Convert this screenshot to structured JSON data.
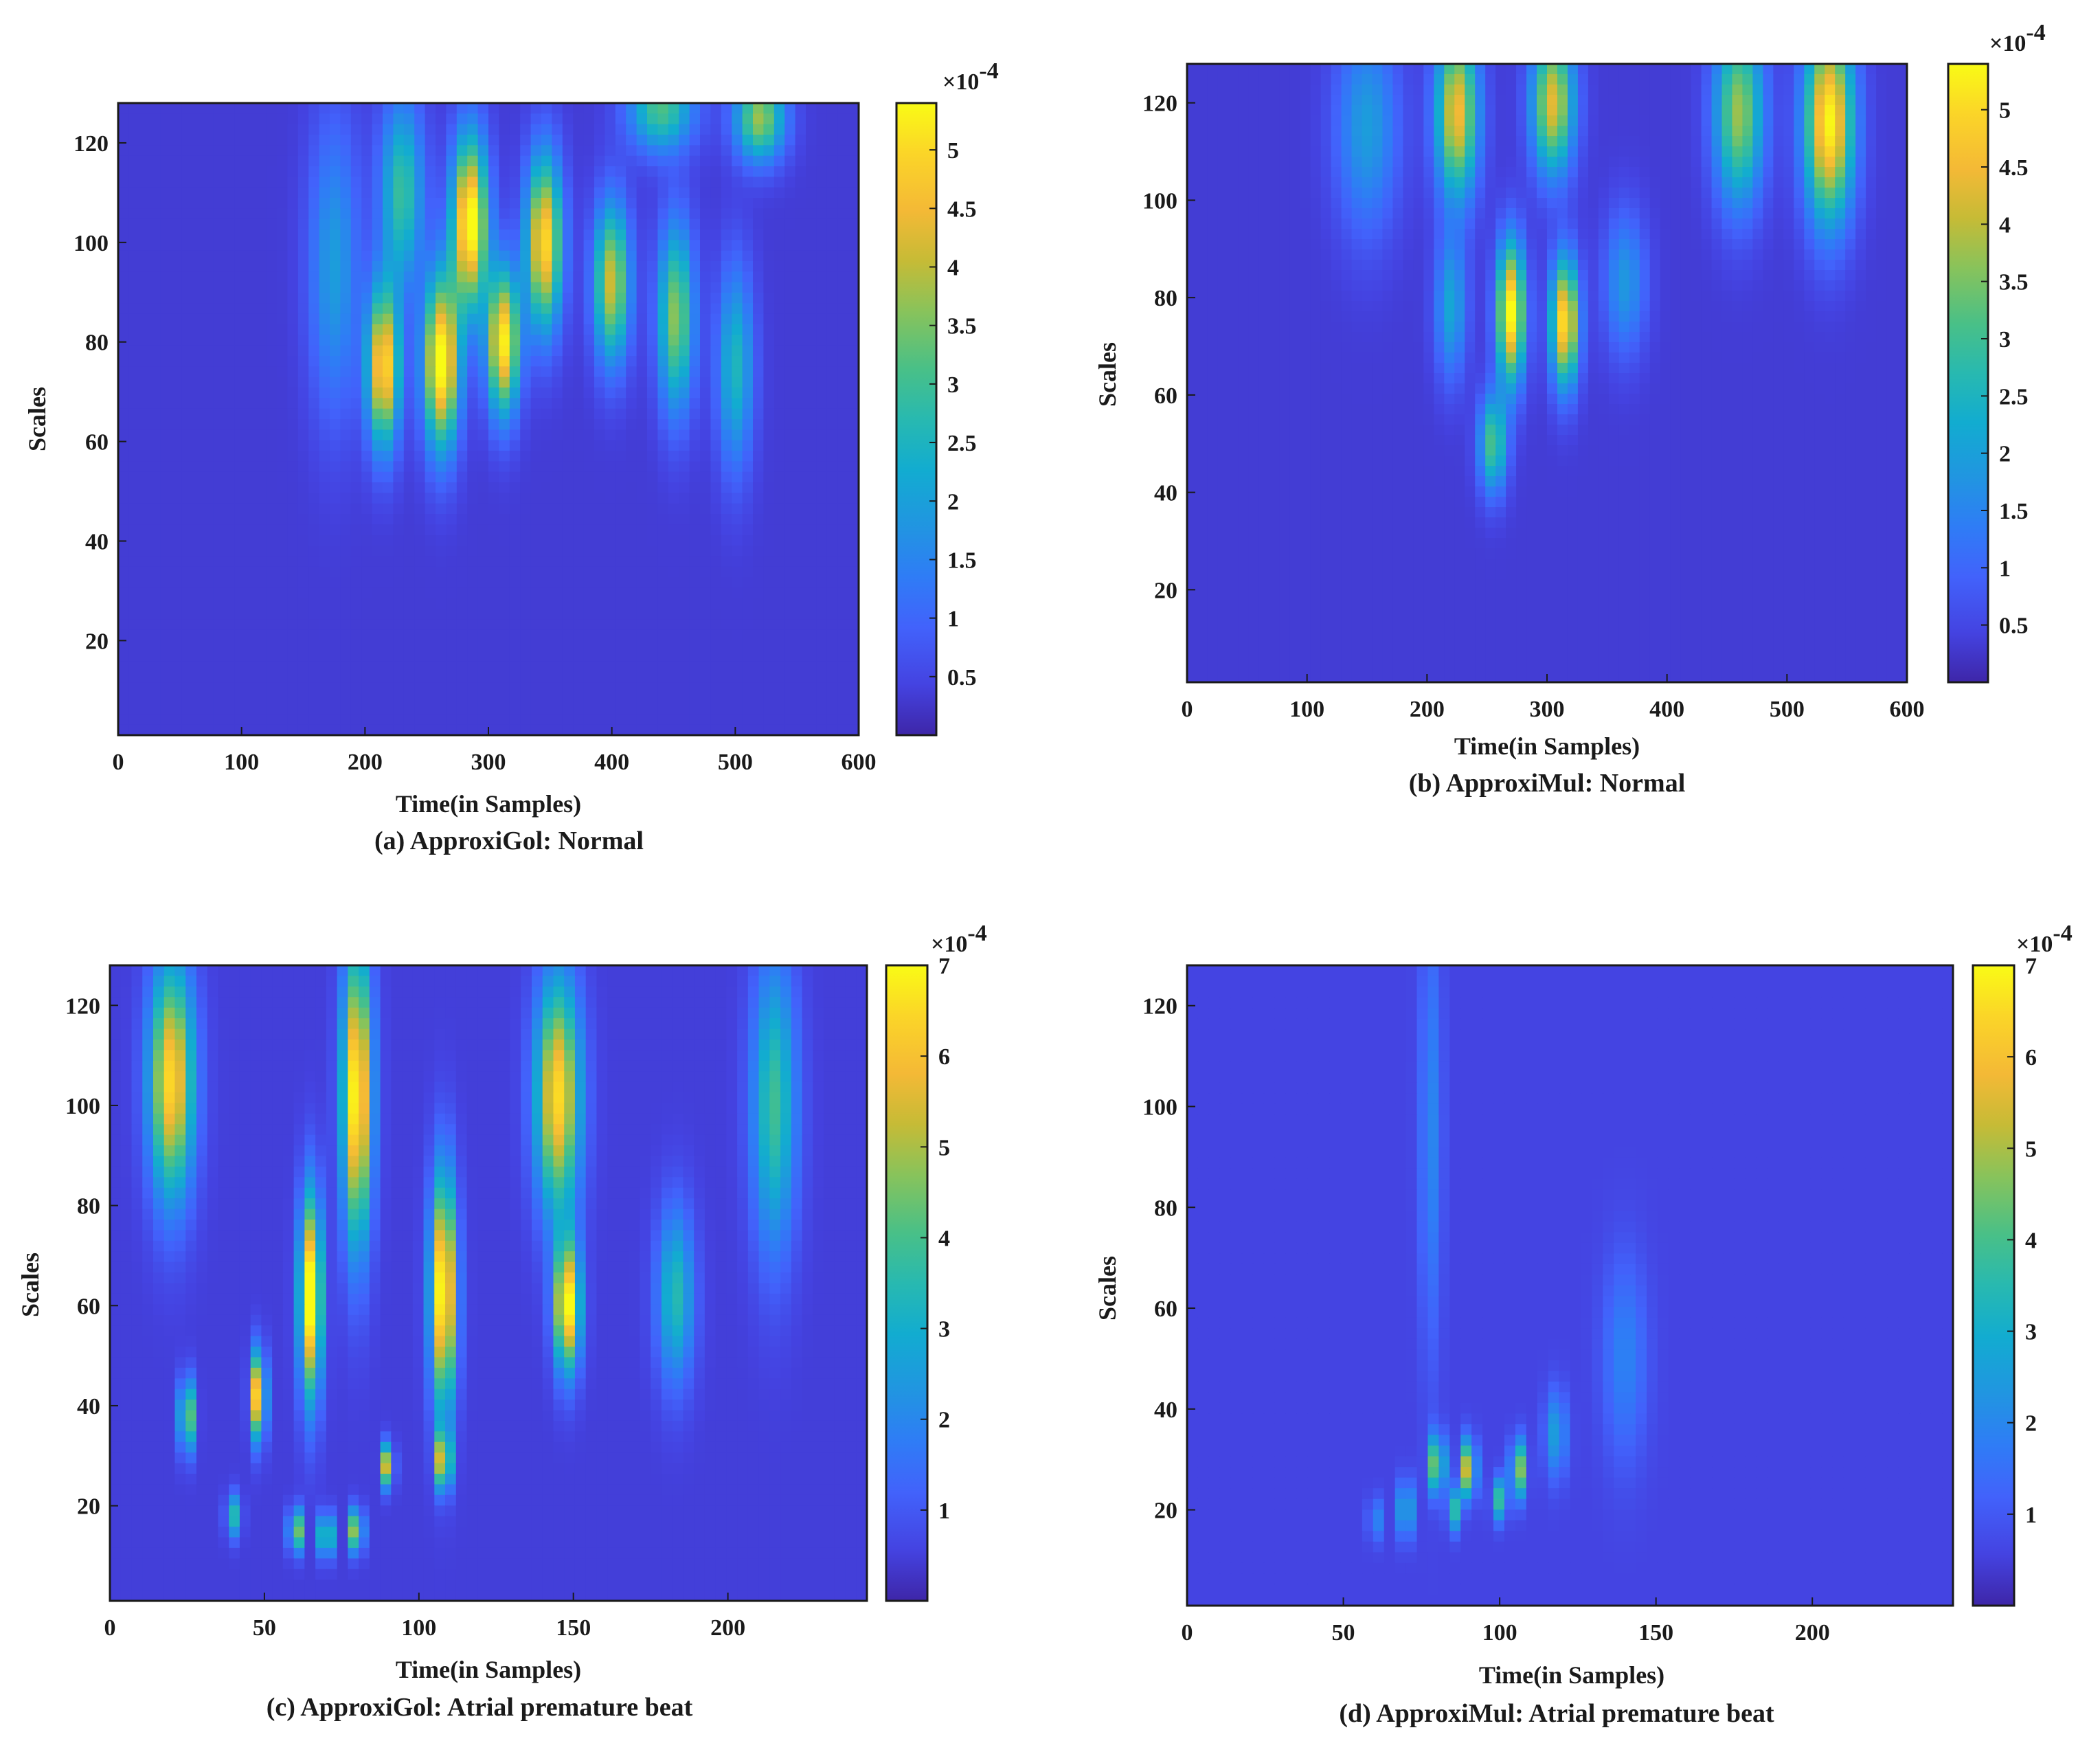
{
  "figure": {
    "description_free": true,
    "colormap": [
      "#3e26a8",
      "#4443e1",
      "#4262fb",
      "#2f7cf6",
      "#2195e1",
      "#12acd0",
      "#28b9b0",
      "#49c087",
      "#88c35b",
      "#c6bb36",
      "#f4b936",
      "#fbd528",
      "#f9fb15"
    ],
    "background": "#ffffff",
    "axis_color": "#1a1a1a"
  },
  "chart_data": [
    {
      "id": "a",
      "type": "heatmap",
      "title": "",
      "caption": "(a) ApproxiGol: Normal",
      "xlabel": "Time(in Samples)",
      "ylabel": "Scales",
      "xlim": [
        0,
        600
      ],
      "ylim": [
        1,
        128
      ],
      "xticks": [
        0,
        100,
        200,
        300,
        400,
        500,
        600
      ],
      "yticks": [
        20,
        40,
        60,
        80,
        100,
        120
      ],
      "colorbar": {
        "min": 0.0,
        "max": 5.4,
        "ticks": [
          0.5,
          1,
          1.5,
          2,
          2.5,
          3,
          3.5,
          4,
          4.5,
          5
        ],
        "tick_labels": [
          "0.5",
          "1",
          "1.5",
          "2",
          "2.5",
          "3",
          "3.5",
          "4",
          "4.5",
          "5"
        ],
        "multiplier": "×10",
        "exponent": "-4"
      },
      "background_value": 0.35,
      "blobs": [
        {
          "x": 215,
          "y": 75,
          "value": 4.8,
          "sx": 9,
          "sy": 11
        },
        {
          "x": 262,
          "y": 76,
          "value": 5.2,
          "sx": 10,
          "sy": 12
        },
        {
          "x": 285,
          "y": 104,
          "value": 5.3,
          "sx": 10,
          "sy": 12
        },
        {
          "x": 312,
          "y": 80,
          "value": 4.9,
          "sx": 9,
          "sy": 10
        },
        {
          "x": 345,
          "y": 100,
          "value": 4.7,
          "sx": 10,
          "sy": 12
        },
        {
          "x": 400,
          "y": 92,
          "value": 3.8,
          "sx": 10,
          "sy": 11
        },
        {
          "x": 452,
          "y": 85,
          "value": 3.3,
          "sx": 10,
          "sy": 13
        },
        {
          "x": 500,
          "y": 75,
          "value": 2.2,
          "sx": 10,
          "sy": 14
        },
        {
          "x": 230,
          "y": 110,
          "value": 2.6,
          "sx": 12,
          "sy": 13
        },
        {
          "x": 440,
          "y": 127,
          "value": 2.8,
          "sx": 18,
          "sy": 6
        },
        {
          "x": 520,
          "y": 125,
          "value": 3.4,
          "sx": 14,
          "sy": 6
        },
        {
          "x": 175,
          "y": 95,
          "value": 1.6,
          "sx": 14,
          "sy": 20
        }
      ]
    },
    {
      "id": "b",
      "type": "heatmap",
      "title": "",
      "caption": "(b) ApproxiMul: Normal",
      "xlabel": "Time(in Samples)",
      "ylabel": "Scales",
      "xlim": [
        0,
        600
      ],
      "ylim": [
        1,
        128
      ],
      "xticks": [
        0,
        100,
        200,
        300,
        400,
        500,
        600
      ],
      "yticks": [
        20,
        40,
        60,
        80,
        100,
        120
      ],
      "colorbar": {
        "min": 0.0,
        "max": 5.4,
        "ticks": [
          0.5,
          1,
          1.5,
          2,
          2.5,
          3,
          3.5,
          4,
          4.5,
          5
        ],
        "tick_labels": [
          "0.5",
          "1",
          "1.5",
          "2",
          "2.5",
          "3",
          "3.5",
          "4",
          "4.5",
          "5"
        ],
        "multiplier": "×10",
        "exponent": "-4"
      },
      "background_value": 0.35,
      "blobs": [
        {
          "x": 270,
          "y": 77,
          "value": 5.1,
          "sx": 8,
          "sy": 10
        },
        {
          "x": 315,
          "y": 75,
          "value": 4.8,
          "sx": 8,
          "sy": 9
        },
        {
          "x": 225,
          "y": 118,
          "value": 4.2,
          "sx": 12,
          "sy": 12
        },
        {
          "x": 305,
          "y": 120,
          "value": 4.0,
          "sx": 12,
          "sy": 10
        },
        {
          "x": 535,
          "y": 116,
          "value": 5.0,
          "sx": 14,
          "sy": 14
        },
        {
          "x": 460,
          "y": 118,
          "value": 3.4,
          "sx": 14,
          "sy": 13
        },
        {
          "x": 255,
          "y": 50,
          "value": 2.8,
          "sx": 8,
          "sy": 7
        },
        {
          "x": 220,
          "y": 78,
          "value": 1.8,
          "sx": 9,
          "sy": 10
        },
        {
          "x": 365,
          "y": 83,
          "value": 1.5,
          "sx": 12,
          "sy": 10
        },
        {
          "x": 150,
          "y": 115,
          "value": 1.6,
          "sx": 18,
          "sy": 15
        }
      ]
    },
    {
      "id": "c",
      "type": "heatmap",
      "title": "",
      "caption": "(c) ApproxiGol: Atrial premature beat",
      "xlabel": "Time(in Samples)",
      "ylabel": "Scales",
      "xlim": [
        0,
        245
      ],
      "ylim": [
        1,
        128
      ],
      "xticks": [
        0,
        50,
        100,
        150,
        200
      ],
      "yticks": [
        20,
        40,
        60,
        80,
        100,
        120
      ],
      "colorbar": {
        "min": 0.0,
        "max": 7.0,
        "ticks": [
          1,
          2,
          3,
          4,
          5,
          6,
          7
        ],
        "tick_labels": [
          "1",
          "2",
          "3",
          "4",
          "5",
          "6",
          "7"
        ],
        "multiplier": "×10",
        "exponent": "-4"
      },
      "background_value": 0.5,
      "blobs": [
        {
          "x": 20,
          "y": 105,
          "value": 6.0,
          "sx": 12,
          "sy": 16
        },
        {
          "x": 80,
          "y": 102,
          "value": 6.8,
          "sx": 8,
          "sy": 20
        },
        {
          "x": 145,
          "y": 102,
          "value": 6.0,
          "sx": 12,
          "sy": 16
        },
        {
          "x": 65,
          "y": 62,
          "value": 7.0,
          "sx": 6,
          "sy": 14
        },
        {
          "x": 108,
          "y": 63,
          "value": 7.0,
          "sx": 7,
          "sy": 16
        },
        {
          "x": 148,
          "y": 60,
          "value": 6.6,
          "sx": 7,
          "sy": 9
        },
        {
          "x": 48,
          "y": 42,
          "value": 6.4,
          "sx": 4,
          "sy": 6
        },
        {
          "x": 25,
          "y": 38,
          "value": 4.8,
          "sx": 4,
          "sy": 5
        },
        {
          "x": 183,
          "y": 62,
          "value": 3.0,
          "sx": 10,
          "sy": 12
        },
        {
          "x": 215,
          "y": 100,
          "value": 3.4,
          "sx": 12,
          "sy": 20
        },
        {
          "x": 60,
          "y": 15,
          "value": 6.5,
          "sx": 3,
          "sy": 3
        },
        {
          "x": 70,
          "y": 14,
          "value": 7.0,
          "sx": 3,
          "sy": 3
        },
        {
          "x": 80,
          "y": 15,
          "value": 7.0,
          "sx": 3,
          "sy": 3
        },
        {
          "x": 90,
          "y": 28,
          "value": 5.8,
          "sx": 3,
          "sy": 3
        },
        {
          "x": 108,
          "y": 29,
          "value": 5.6,
          "sx": 4,
          "sy": 4
        },
        {
          "x": 40,
          "y": 18,
          "value": 3.0,
          "sx": 4,
          "sy": 3
        }
      ]
    },
    {
      "id": "d",
      "type": "heatmap",
      "title": "",
      "caption": "(d) ApproxiMul: Atrial premature beat",
      "xlabel": "Time(in Samples)",
      "ylabel": "Scales",
      "xlim": [
        0,
        245
      ],
      "ylim": [
        1,
        128
      ],
      "xticks": [
        0,
        50,
        100,
        150,
        200
      ],
      "yticks": [
        20,
        40,
        60,
        80,
        100,
        120
      ],
      "colorbar": {
        "min": 0.0,
        "max": 7.0,
        "ticks": [
          1,
          2,
          3,
          4,
          5,
          6,
          7
        ],
        "tick_labels": [
          "1",
          "2",
          "3",
          "4",
          "5",
          "6",
          "7"
        ],
        "multiplier": "×10",
        "exponent": "-4"
      },
      "background_value": 0.6,
      "blobs": [
        {
          "x": 70,
          "y": 20,
          "value": 4.6,
          "sx": 3,
          "sy": 4
        },
        {
          "x": 80,
          "y": 29,
          "value": 4.8,
          "sx": 4,
          "sy": 4
        },
        {
          "x": 90,
          "y": 28,
          "value": 5.2,
          "sx": 4,
          "sy": 4
        },
        {
          "x": 106,
          "y": 28,
          "value": 4.4,
          "sx": 4,
          "sy": 4
        },
        {
          "x": 85,
          "y": 20,
          "value": 3.6,
          "sx": 3,
          "sy": 3
        },
        {
          "x": 100,
          "y": 22,
          "value": 3.2,
          "sx": 4,
          "sy": 3
        },
        {
          "x": 118,
          "y": 35,
          "value": 2.0,
          "sx": 6,
          "sy": 6
        },
        {
          "x": 60,
          "y": 18,
          "value": 2.2,
          "sx": 3,
          "sy": 3
        },
        {
          "x": 78,
          "y": 95,
          "value": 1.4,
          "sx": 6,
          "sy": 30
        },
        {
          "x": 140,
          "y": 50,
          "value": 1.3,
          "sx": 12,
          "sy": 14
        }
      ]
    }
  ]
}
